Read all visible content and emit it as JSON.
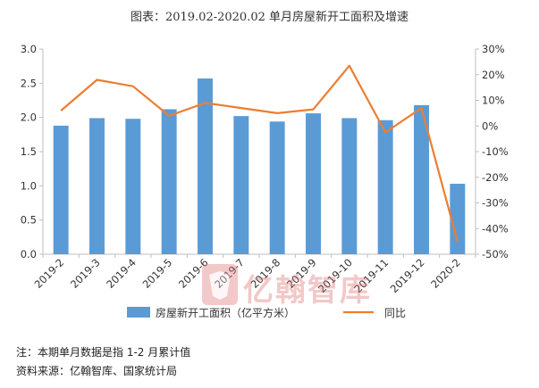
{
  "title": "图表：2019.02-2020.02 单月房屋新开工面积及增速",
  "notes": {
    "note": "注：本期单月数据是指 1-2 月累计值",
    "source": "资料来源：亿翰智库、国家统计局"
  },
  "watermark": {
    "text": "亿翰智库"
  },
  "colors": {
    "bar": "#5b9bd5",
    "line": "#ed7d31",
    "axis": "#bfbfbf",
    "text": "#333333"
  },
  "chart_data": {
    "type": "bar",
    "categories": [
      "2019-2",
      "2019-3",
      "2019-4",
      "2019-5",
      "2019-6",
      "2019-7",
      "2019-8",
      "2019-9",
      "2019-10",
      "2019-11",
      "2019-12",
      "2020-2"
    ],
    "series": [
      {
        "name": "房屋新开工面积（亿平方米）",
        "type": "bar",
        "axis": "left",
        "values": [
          1.88,
          1.99,
          1.98,
          2.12,
          2.57,
          2.02,
          1.94,
          2.06,
          1.99,
          1.96,
          2.18,
          1.03
        ]
      },
      {
        "name": "同比",
        "type": "line",
        "axis": "right",
        "unit": "%",
        "values": [
          6,
          18,
          15.5,
          4,
          9,
          7,
          5,
          6.5,
          23.5,
          -2.5,
          7,
          -45
        ]
      }
    ],
    "y_left": {
      "min": 0,
      "max": 3.0,
      "ticks": [
        "0.0",
        "0.5",
        "1.0",
        "1.5",
        "2.0",
        "2.5",
        "3.0"
      ]
    },
    "y_right": {
      "min": -50,
      "max": 30,
      "ticks": [
        "-50%",
        "-40%",
        "-30%",
        "-20%",
        "-10%",
        "0%",
        "10%",
        "20%",
        "30%"
      ]
    },
    "legend": "bottom",
    "grid": false
  }
}
